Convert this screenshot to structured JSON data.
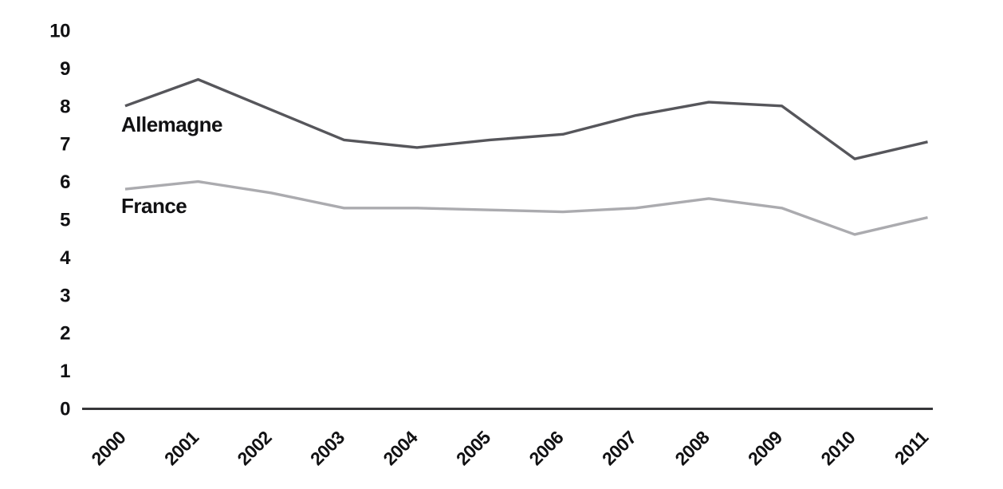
{
  "chart_data": {
    "type": "line",
    "title": "",
    "xlabel": "",
    "ylabel": "",
    "categories": [
      "2000",
      "2001",
      "2002",
      "2003",
      "2004",
      "2005",
      "2006",
      "2007",
      "2008",
      "2009",
      "2010",
      "2011"
    ],
    "series": [
      {
        "name": "Allemagne",
        "color": "#56565b",
        "values": [
          8.0,
          8.7,
          7.9,
          7.1,
          6.9,
          7.1,
          7.25,
          7.75,
          8.1,
          8.0,
          6.6,
          7.05
        ]
      },
      {
        "name": "France",
        "color": "#ababaf",
        "values": [
          5.8,
          6.0,
          5.7,
          5.3,
          5.3,
          5.25,
          5.2,
          5.3,
          5.55,
          5.3,
          4.6,
          5.05
        ]
      }
    ],
    "ylim": [
      0,
      10
    ],
    "y_ticks": [
      "0",
      "1",
      "2",
      "3",
      "4",
      "5",
      "6",
      "7",
      "8",
      "9",
      "10"
    ],
    "grid": false,
    "legend": "inline labels left of each line (Allemagne above, France below)",
    "x_tick_rotation_deg": -45,
    "axis_color": "#37373a",
    "text_color": "#111113",
    "background": "#ffffff"
  }
}
